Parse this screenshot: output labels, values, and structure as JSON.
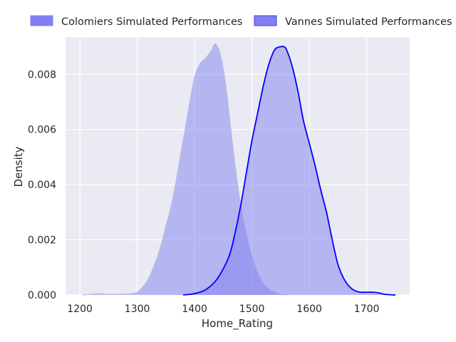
{
  "chart_data": {
    "type": "area",
    "xlabel": "Home_Rating",
    "ylabel": "Density",
    "xlim": [
      1175,
      1775
    ],
    "ylim": [
      0,
      0.00935
    ],
    "xticks": [
      1200,
      1300,
      1400,
      1500,
      1600,
      1700
    ],
    "yticks": [
      0.0,
      0.002,
      0.004,
      0.006,
      0.008
    ],
    "ytick_labels": [
      "0.000",
      "0.002",
      "0.004",
      "0.006",
      "0.008"
    ],
    "grid": true,
    "legend_position": "top",
    "series": [
      {
        "name": "Colomiers Simulated Performances",
        "color": "#8080f0",
        "stroke": "#b8bcec",
        "x": [
          1205,
          1220,
          1235,
          1250,
          1270,
          1290,
          1300,
          1310,
          1320,
          1330,
          1340,
          1350,
          1360,
          1370,
          1380,
          1390,
          1400,
          1410,
          1420,
          1430,
          1435,
          1440,
          1445,
          1450,
          1455,
          1460,
          1470,
          1480,
          1490,
          1500,
          1510,
          1520,
          1530,
          1540,
          1550,
          1560
        ],
        "y": [
          0.0,
          3e-05,
          5e-05,
          2e-05,
          3e-05,
          5e-05,
          0.0001,
          0.0003,
          0.0006,
          0.0011,
          0.0017,
          0.0025,
          0.0033,
          0.0044,
          0.0056,
          0.0068,
          0.0079,
          0.0084,
          0.0086,
          0.0089,
          0.0091,
          0.009,
          0.0087,
          0.0082,
          0.0075,
          0.0066,
          0.0048,
          0.0033,
          0.0022,
          0.0014,
          0.0008,
          0.0004,
          0.0002,
          0.0001,
          3e-05,
          0.0
        ]
      },
      {
        "name": "Vannes Simulated Performances",
        "color": "#8080f0",
        "stroke": "#0000ff",
        "x": [
          1380,
          1400,
          1420,
          1440,
          1460,
          1470,
          1480,
          1490,
          1500,
          1510,
          1520,
          1530,
          1540,
          1550,
          1555,
          1560,
          1570,
          1580,
          1590,
          1600,
          1610,
          1620,
          1630,
          1640,
          1650,
          1660,
          1670,
          1680,
          1690,
          1700,
          1710,
          1720,
          1730,
          1740,
          1750
        ],
        "y": [
          0.0,
          5e-05,
          0.0002,
          0.0006,
          0.0014,
          0.0022,
          0.0032,
          0.0044,
          0.0056,
          0.0066,
          0.0076,
          0.0084,
          0.0089,
          0.009,
          0.009,
          0.0089,
          0.0083,
          0.0074,
          0.0063,
          0.0055,
          0.0047,
          0.0038,
          0.003,
          0.002,
          0.0011,
          0.0006,
          0.0003,
          0.00015,
          0.0001,
          0.0001,
          0.0001,
          8e-05,
          3e-05,
          1e-05,
          0.0
        ]
      }
    ]
  }
}
